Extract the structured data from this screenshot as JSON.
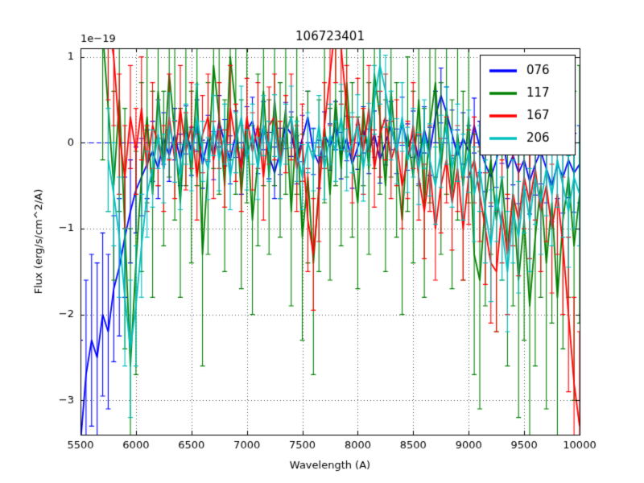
{
  "title": "106723401",
  "chart_data": {
    "type": "line",
    "title": "106723401",
    "xlabel": "Wavelength (A)",
    "ylabel": "Flux (erg/s/cm^2/A)",
    "offset_text": "1e−19",
    "xlim": [
      5500,
      10000
    ],
    "ylim": [
      -3.4,
      1.1
    ],
    "xticks": [
      5500,
      6000,
      6500,
      7000,
      7500,
      8000,
      8500,
      9000,
      9500,
      10000
    ],
    "xtick_labels": [
      "5500",
      "6000",
      "6500",
      "7000",
      "7500",
      "8000",
      "8500",
      "9000",
      "9500",
      "10000"
    ],
    "yticks": [
      1,
      0,
      -1,
      -2,
      -3
    ],
    "ytick_labels": [
      "1",
      "0",
      "−1",
      "−2",
      "−3"
    ],
    "grid": true,
    "grid_style": "dotted",
    "grid_color": "#555555",
    "zero_line": {
      "y": 0,
      "color": "#0000ff",
      "style": "dashed"
    },
    "legend": {
      "position": "upper right",
      "entries": [
        {
          "label": "076",
          "color": "#0000ff"
        },
        {
          "label": "117",
          "color": "#008000"
        },
        {
          "label": "167",
          "color": "#ff0000"
        },
        {
          "label": "206",
          "color": "#00bfbf"
        }
      ]
    },
    "series": [
      {
        "name": "076",
        "color": "#0000ff",
        "x0": 5500,
        "dx": 50,
        "y": [
          -3.5,
          -2.7,
          -2.3,
          -2.5,
          -2.0,
          -2.2,
          -1.7,
          -1.45,
          -1.1,
          -0.8,
          -0.55,
          -0.4,
          -0.25,
          -0.1,
          -0.3,
          0.05,
          -0.15,
          0.1,
          -0.2,
          0.15,
          -0.1,
          0.2,
          -0.25,
          0.05,
          -0.15,
          0.25,
          0.0,
          -0.2,
          0.1,
          -0.3,
          0.15,
          0.25,
          -0.1,
          0.2,
          -0.15,
          -0.35,
          -0.1,
          0.2,
          0.1,
          -0.2,
          0.05,
          0.3,
          -0.1,
          -0.25,
          0.1,
          -0.05,
          0.2,
          -0.15,
          0.05,
          -0.25,
          -0.05,
          0.15,
          -0.1,
          0.1,
          -0.2,
          0.0,
          0.2,
          -0.1,
          0.25,
          -0.05,
          0.1,
          -0.2,
          0.15,
          -0.1,
          0.3,
          0.55,
          0.35,
          0.1,
          -0.15,
          0.05,
          -0.1,
          0.2,
          -0.05,
          -0.25,
          -0.4,
          -0.2,
          0.1,
          -0.3,
          -0.15,
          -0.35,
          -0.2,
          -0.45,
          -0.25,
          -0.1,
          -0.3,
          -0.5,
          -0.25,
          -0.4,
          -0.2,
          -0.35,
          -0.25
        ],
        "yerr": [
          1.2,
          1.1,
          1.0,
          1.1,
          0.95,
          0.9,
          0.85,
          0.8,
          0.7,
          0.6,
          0.5,
          0.45,
          0.4,
          0.35,
          0.35,
          0.3,
          0.3,
          0.3,
          0.3,
          0.28,
          0.28,
          0.3,
          0.28,
          0.27,
          0.28,
          0.3,
          0.27,
          0.28,
          0.27,
          0.3,
          0.27,
          0.28,
          0.26,
          0.28,
          0.27,
          0.3,
          0.27,
          0.27,
          0.26,
          0.28,
          0.27,
          0.3,
          0.27,
          0.28,
          0.26,
          0.27,
          0.28,
          0.27,
          0.26,
          0.28,
          0.26,
          0.27,
          0.26,
          0.27,
          0.27,
          0.26,
          0.28,
          0.26,
          0.28,
          0.27,
          0.27,
          0.28,
          0.27,
          0.28,
          0.3,
          0.32,
          0.3,
          0.28,
          0.3,
          0.3,
          0.3,
          0.32,
          0.3,
          0.32,
          0.34,
          0.32,
          0.34,
          0.35,
          0.34,
          0.36,
          0.35,
          0.38,
          0.36,
          0.38,
          0.4,
          0.42,
          0.4,
          0.42,
          0.44,
          0.46,
          0.45
        ]
      },
      {
        "name": "117",
        "color": "#008000",
        "x0": 5700,
        "dx": 50,
        "y": [
          1.3,
          0.4,
          -0.5,
          0.5,
          -1.0,
          -2.6,
          -1.4,
          -0.4,
          0.3,
          -0.6,
          0.6,
          -0.3,
          0.8,
          0.1,
          -0.7,
          0.4,
          -0.4,
          0.7,
          -1.3,
          -0.3,
          0.9,
          0.3,
          -0.5,
          1.0,
          0.4,
          -0.6,
          0.2,
          -0.9,
          -0.2,
          0.6,
          -0.4,
          0.5,
          -0.2,
          0.4,
          -0.8,
          0.3,
          -1.1,
          -0.4,
          -1.4,
          -0.5,
          0.2,
          -0.6,
          0.5,
          -0.3,
          0.7,
          -0.2,
          -0.7,
          0.4,
          -0.3,
          0.8,
          0.3,
          -0.5,
          0.6,
          -0.2,
          -0.9,
          0.1,
          -0.4,
          0.5,
          -0.7,
          0.2,
          0.7,
          -0.3,
          0.4,
          -0.6,
          0.1,
          -0.5,
          0.3,
          -1.3,
          -1.6,
          -0.7,
          -0.2,
          -0.9,
          -0.4,
          -1.2,
          -0.6,
          -1.6,
          -0.9,
          -1.9,
          -1.1,
          -0.5,
          -1.4,
          -0.7,
          -1.8,
          -0.9,
          -0.4,
          -1.2,
          -0.6
        ],
        "yerr": [
          1.5,
          1.2,
          1.1,
          1.3,
          1.4,
          1.6,
          1.3,
          1.1,
          1.0,
          1.2,
          1.1,
          0.9,
          1.2,
          1.0,
          1.1,
          0.9,
          1.0,
          1.2,
          1.3,
          1.0,
          1.2,
          0.9,
          1.0,
          1.2,
          1.0,
          1.1,
          0.9,
          1.1,
          1.0,
          1.1,
          0.9,
          1.0,
          0.9,
          1.0,
          1.1,
          0.9,
          1.2,
          1.0,
          1.3,
          1.0,
          0.9,
          1.0,
          1.0,
          0.9,
          1.1,
          0.9,
          1.0,
          0.9,
          1.0,
          1.1,
          0.9,
          1.0,
          1.0,
          0.9,
          1.1,
          0.9,
          1.0,
          1.0,
          1.1,
          0.9,
          1.1,
          1.0,
          1.0,
          1.1,
          1.0,
          1.1,
          1.0,
          1.4,
          1.5,
          1.2,
          1.1,
          1.3,
          1.2,
          1.4,
          1.3,
          1.6,
          1.4,
          1.8,
          1.5,
          1.3,
          1.7,
          1.4,
          1.9,
          1.5,
          1.4,
          1.8,
          1.5
        ]
      },
      {
        "name": "167",
        "color": "#ff0000",
        "x0": 5750,
        "dx": 50,
        "y": [
          1.4,
          1.0,
          0.1,
          -0.4,
          0.3,
          -0.1,
          0.4,
          -0.3,
          0.2,
          0.0,
          -0.3,
          0.3,
          -0.2,
          0.4,
          -0.1,
          0.2,
          -0.4,
          0.1,
          0.3,
          -0.2,
          0.2,
          -0.3,
          0.4,
          0.0,
          -0.3,
          0.3,
          -0.1,
          0.2,
          -0.4,
          0.2,
          0.3,
          -0.2,
          0.1,
          0.3,
          -0.3,
          0.0,
          -0.9,
          -1.3,
          -0.6,
          0.2,
          0.8,
          1.4,
          1.1,
          0.4,
          -0.2,
          0.3,
          -0.1,
          0.4,
          -0.3,
          0.1,
          0.3,
          -0.2,
          0.0,
          -0.5,
          -0.2,
          0.2,
          -0.4,
          -0.8,
          -0.3,
          -1.0,
          -0.5,
          -0.2,
          -0.7,
          -0.3,
          -1.0,
          -0.4,
          -0.2,
          -0.6,
          -1.0,
          -1.4,
          -1.5,
          -0.8,
          -1.3,
          -0.6,
          -0.9,
          -0.4,
          -0.7,
          -0.3,
          -0.8,
          -0.5,
          -1.0,
          -0.6,
          -1.2,
          -2.0,
          -2.8,
          -3.3
        ],
        "yerr": [
          0.9,
          0.8,
          0.7,
          0.6,
          0.6,
          0.5,
          0.6,
          0.5,
          0.5,
          0.5,
          0.5,
          0.5,
          0.45,
          0.5,
          0.45,
          0.5,
          0.5,
          0.45,
          0.5,
          0.45,
          0.5,
          0.45,
          0.5,
          0.45,
          0.5,
          0.45,
          0.45,
          0.5,
          0.5,
          0.45,
          0.5,
          0.45,
          0.45,
          0.5,
          0.5,
          0.45,
          0.6,
          0.65,
          0.55,
          0.5,
          0.6,
          0.7,
          0.65,
          0.5,
          0.5,
          0.45,
          0.5,
          0.5,
          0.45,
          0.5,
          0.5,
          0.45,
          0.5,
          0.5,
          0.45,
          0.5,
          0.5,
          0.55,
          0.5,
          0.6,
          0.55,
          0.5,
          0.55,
          0.5,
          0.6,
          0.55,
          0.5,
          0.55,
          0.65,
          0.7,
          0.7,
          0.6,
          0.7,
          0.6,
          0.65,
          0.6,
          0.65,
          0.6,
          0.7,
          0.65,
          0.75,
          0.7,
          0.8,
          0.9,
          1.0,
          1.1
        ]
      },
      {
        "name": "206",
        "color": "#00bfbf",
        "x0": 5750,
        "dx": 50,
        "y": [
          -0.2,
          -0.6,
          -1.1,
          -1.8,
          -2.4,
          -1.9,
          -1.2,
          -0.6,
          -0.3,
          0.1,
          -0.3,
          0.2,
          -0.1,
          -0.4,
          0.1,
          -0.2,
          0.3,
          -0.1,
          -0.3,
          0.2,
          -0.2,
          0.1,
          -0.4,
          0.0,
          0.3,
          -0.2,
          0.1,
          -0.3,
          0.2,
          -0.1,
          0.2,
          -0.3,
          0.1,
          0.3,
          -0.1,
          -0.4,
          0.0,
          -0.2,
          0.2,
          -0.3,
          0.1,
          -0.1,
          0.3,
          -0.2,
          0.0,
          0.2,
          -0.3,
          0.1,
          0.5,
          0.9,
          0.6,
          0.2,
          -0.1,
          0.3,
          -0.2,
          0.0,
          -0.3,
          0.1,
          -0.2,
          -0.5,
          -0.1,
          0.2,
          -0.3,
          0.0,
          -0.4,
          -0.1,
          -0.6,
          -0.3,
          -0.8,
          -1.2,
          -0.6,
          -1.0,
          -1.5,
          -0.8,
          -1.1,
          -0.5,
          -0.9,
          -0.4,
          -0.7,
          -0.3,
          -0.6,
          -0.2,
          -0.5,
          -0.8,
          -0.4,
          -0.6
        ],
        "yerr": [
          0.6,
          0.6,
          0.7,
          0.8,
          0.8,
          0.7,
          0.6,
          0.5,
          0.45,
          0.4,
          0.4,
          0.38,
          0.36,
          0.38,
          0.35,
          0.36,
          0.38,
          0.35,
          0.36,
          0.35,
          0.36,
          0.35,
          0.38,
          0.35,
          0.36,
          0.35,
          0.35,
          0.36,
          0.35,
          0.35,
          0.36,
          0.35,
          0.35,
          0.36,
          0.35,
          0.38,
          0.35,
          0.36,
          0.35,
          0.36,
          0.35,
          0.35,
          0.38,
          0.36,
          0.35,
          0.36,
          0.38,
          0.36,
          0.4,
          0.45,
          0.42,
          0.4,
          0.38,
          0.4,
          0.38,
          0.4,
          0.42,
          0.4,
          0.42,
          0.45,
          0.42,
          0.45,
          0.45,
          0.45,
          0.5,
          0.48,
          0.55,
          0.5,
          0.6,
          0.65,
          0.55,
          0.6,
          0.7,
          0.6,
          0.65,
          0.55,
          0.6,
          0.55,
          0.6,
          0.55,
          0.6,
          0.55,
          0.6,
          0.65,
          0.6,
          0.6
        ]
      }
    ]
  }
}
